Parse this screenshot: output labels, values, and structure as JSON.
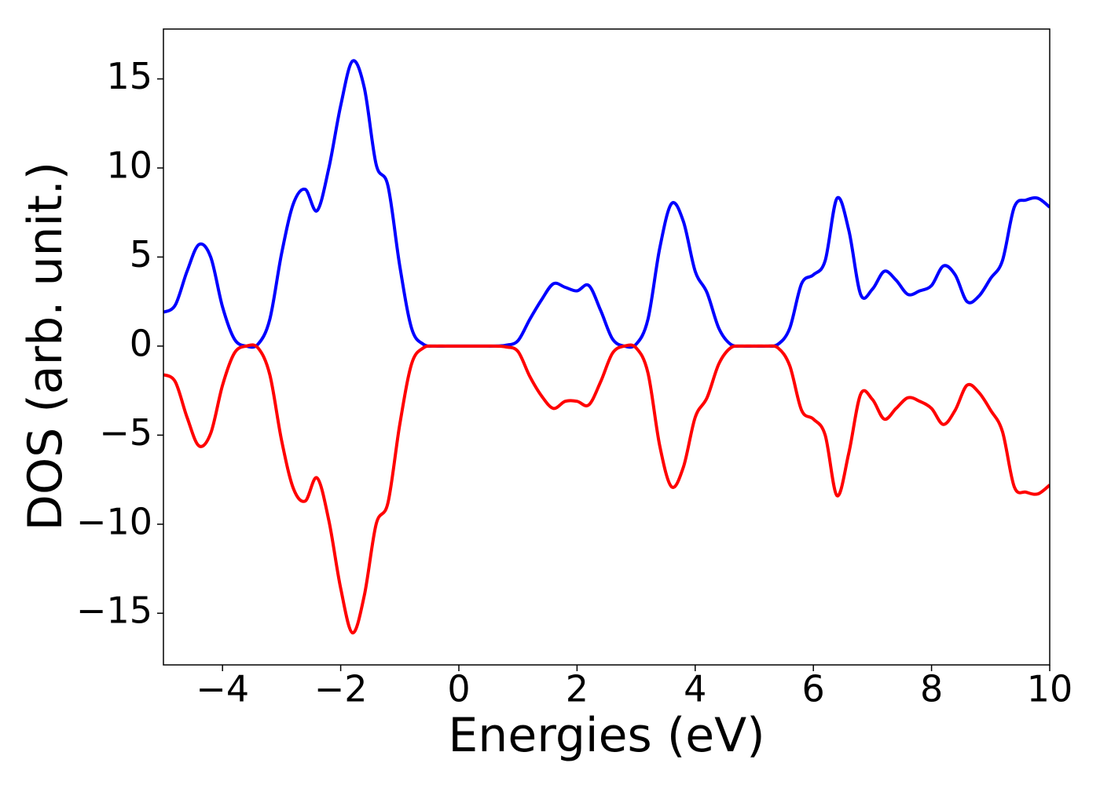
{
  "chart_data": {
    "type": "line",
    "x_label": "Energies (eV)",
    "y_label": "DOS (arb. unit.)",
    "x": [
      -5.0,
      -4.8,
      -4.6,
      -4.4,
      -4.2,
      -4.0,
      -3.8,
      -3.6,
      -3.4,
      -3.2,
      -3.0,
      -2.8,
      -2.6,
      -2.4,
      -2.2,
      -2.0,
      -1.8,
      -1.6,
      -1.4,
      -1.2,
      -1.0,
      -0.8,
      -0.6,
      -0.4,
      -0.2,
      0.0,
      0.2,
      0.4,
      0.6,
      0.8,
      1.0,
      1.2,
      1.4,
      1.6,
      1.8,
      2.0,
      2.2,
      2.4,
      2.6,
      2.8,
      3.0,
      3.2,
      3.4,
      3.6,
      3.8,
      4.0,
      4.2,
      4.4,
      4.6,
      4.8,
      5.0,
      5.2,
      5.4,
      5.6,
      5.8,
      6.0,
      6.2,
      6.4,
      6.6,
      6.8,
      7.0,
      7.2,
      7.4,
      7.6,
      7.8,
      8.0,
      8.2,
      8.4,
      8.6,
      8.8,
      9.0,
      9.2,
      9.4,
      9.6,
      9.8,
      10.0
    ],
    "series": [
      {
        "color": "#0000ff",
        "values": [
          1.9,
          2.3,
          4.2,
          5.7,
          5.0,
          2.2,
          0.4,
          0.0,
          0.1,
          1.5,
          5.2,
          8.0,
          8.8,
          7.6,
          10.0,
          13.5,
          16.0,
          14.5,
          10.2,
          9.0,
          4.5,
          1.0,
          0.1,
          0,
          0,
          0,
          0,
          0,
          0,
          0.05,
          0.3,
          1.5,
          2.6,
          3.5,
          3.3,
          3.1,
          3.4,
          2.0,
          0.4,
          0.0,
          0.1,
          1.5,
          5.5,
          8.0,
          7.0,
          4.2,
          3.0,
          1.0,
          0.1,
          0,
          0,
          0,
          0.1,
          1.0,
          3.5,
          4.0,
          4.8,
          8.3,
          6.5,
          2.9,
          3.2,
          4.2,
          3.7,
          2.9,
          3.1,
          3.4,
          4.5,
          4.0,
          2.5,
          2.8,
          3.8,
          4.8,
          7.8,
          8.2,
          8.3,
          7.8
        ]
      },
      {
        "color": "#ff0000",
        "values": [
          -1.6,
          -2.0,
          -4.0,
          -5.6,
          -4.9,
          -2.2,
          -0.4,
          0.0,
          -0.1,
          -1.6,
          -5.3,
          -8.0,
          -8.7,
          -7.4,
          -9.8,
          -13.6,
          -16.1,
          -14.0,
          -10.0,
          -8.8,
          -4.4,
          -1.0,
          -0.1,
          0,
          0,
          0,
          0,
          0,
          0,
          -0.05,
          -0.3,
          -1.7,
          -2.8,
          -3.5,
          -3.1,
          -3.1,
          -3.3,
          -2.0,
          -0.4,
          0.0,
          -0.1,
          -1.5,
          -5.6,
          -7.9,
          -6.8,
          -4.0,
          -2.9,
          -1.0,
          -0.1,
          0,
          0,
          0,
          -0.1,
          -1.1,
          -3.6,
          -4.1,
          -5.0,
          -8.4,
          -6.0,
          -2.7,
          -3.0,
          -4.1,
          -3.5,
          -2.9,
          -3.1,
          -3.5,
          -4.4,
          -3.6,
          -2.2,
          -2.6,
          -3.6,
          -4.8,
          -7.9,
          -8.2,
          -8.3,
          -7.8
        ]
      }
    ],
    "xlim": [
      -5,
      10
    ],
    "ylim": [
      -17.9,
      17.8
    ],
    "xticks": [
      {
        "value": -4,
        "label": "−4"
      },
      {
        "value": -2,
        "label": "−2"
      },
      0,
      2,
      4,
      6,
      8,
      10
    ],
    "yticks": [
      {
        "value": -15,
        "label": "−15"
      },
      {
        "value": -10,
        "label": "−10"
      },
      {
        "value": -5,
        "label": "−5"
      },
      0,
      5,
      10,
      15
    ]
  }
}
